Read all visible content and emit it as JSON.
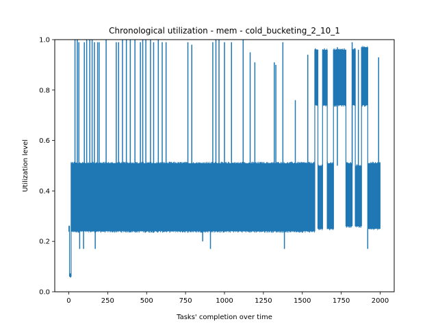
{
  "chart_data": {
    "type": "line",
    "title": "Chronological utilization - mem - cold_bucketing_2_10_1",
    "xlabel": "Tasks' completion over time",
    "ylabel": "Utilization level",
    "xlim": [
      -90,
      2090
    ],
    "ylim": [
      0.0,
      1.0
    ],
    "xticks": [
      0,
      250,
      500,
      750,
      1000,
      1250,
      1500,
      1750,
      2000
    ],
    "xtick_labels": [
      "0",
      "250",
      "500",
      "750",
      "1000",
      "1250",
      "1500",
      "1750",
      "2000"
    ],
    "yticks": [
      0.0,
      0.2,
      0.4,
      0.6,
      0.8,
      1.0
    ],
    "ytick_labels": [
      "0.0",
      "0.2",
      "0.4",
      "0.6",
      "0.8",
      "1.0"
    ],
    "grid": false,
    "series": [
      {
        "color": "#1f77b4",
        "x_start": 0,
        "x_end": 2000,
        "segments": [
          {
            "x": [
              0,
              5
            ],
            "low": 0.24,
            "high": 0.26
          },
          {
            "x": [
              5,
              15
            ],
            "low": 0.06,
            "high": 0.07
          },
          {
            "x": [
              15,
              1580
            ],
            "low": 0.24,
            "high": 0.51
          },
          {
            "x": [
              1580,
              1600
            ],
            "low": 0.74,
            "high": 0.96
          },
          {
            "x": [
              1600,
              1630
            ],
            "low": 0.25,
            "high": 0.5
          },
          {
            "x": [
              1630,
              1660
            ],
            "low": 0.74,
            "high": 0.96
          },
          {
            "x": [
              1660,
              1700
            ],
            "low": 0.25,
            "high": 0.51
          },
          {
            "x": [
              1700,
              1780
            ],
            "low": 0.74,
            "high": 0.96
          },
          {
            "x": [
              1780,
              1820
            ],
            "low": 0.26,
            "high": 0.51
          },
          {
            "x": [
              1820,
              1840
            ],
            "low": 0.74,
            "high": 0.96
          },
          {
            "x": [
              1840,
              1880
            ],
            "low": 0.26,
            "high": 0.5
          },
          {
            "x": [
              1880,
              1920
            ],
            "low": 0.74,
            "high": 0.97
          },
          {
            "x": [
              1920,
              2000
            ],
            "low": 0.25,
            "high": 0.51
          }
        ],
        "spikes": [
          {
            "x": 40,
            "y": 1.0
          },
          {
            "x": 55,
            "y": 1.0
          },
          {
            "x": 65,
            "y": 0.99
          },
          {
            "x": 100,
            "y": 0.99
          },
          {
            "x": 115,
            "y": 1.0
          },
          {
            "x": 135,
            "y": 1.0
          },
          {
            "x": 150,
            "y": 1.0
          },
          {
            "x": 165,
            "y": 0.99
          },
          {
            "x": 185,
            "y": 0.99
          },
          {
            "x": 195,
            "y": 0.99
          },
          {
            "x": 240,
            "y": 1.0
          },
          {
            "x": 305,
            "y": 0.99
          },
          {
            "x": 320,
            "y": 0.99
          },
          {
            "x": 345,
            "y": 1.0
          },
          {
            "x": 370,
            "y": 1.0
          },
          {
            "x": 395,
            "y": 1.0
          },
          {
            "x": 425,
            "y": 1.0
          },
          {
            "x": 460,
            "y": 0.99
          },
          {
            "x": 475,
            "y": 1.0
          },
          {
            "x": 495,
            "y": 1.0
          },
          {
            "x": 525,
            "y": 1.0
          },
          {
            "x": 545,
            "y": 0.99
          },
          {
            "x": 575,
            "y": 1.0
          },
          {
            "x": 600,
            "y": 0.99
          },
          {
            "x": 625,
            "y": 0.99
          },
          {
            "x": 765,
            "y": 0.99
          },
          {
            "x": 790,
            "y": 0.98
          },
          {
            "x": 925,
            "y": 0.99
          },
          {
            "x": 945,
            "y": 1.0
          },
          {
            "x": 965,
            "y": 1.0
          },
          {
            "x": 1000,
            "y": 0.99
          },
          {
            "x": 1045,
            "y": 0.99
          },
          {
            "x": 1120,
            "y": 1.0
          },
          {
            "x": 1165,
            "y": 0.95
          },
          {
            "x": 1195,
            "y": 0.91
          },
          {
            "x": 1320,
            "y": 0.91
          },
          {
            "x": 1330,
            "y": 0.9
          },
          {
            "x": 1375,
            "y": 0.99
          },
          {
            "x": 1455,
            "y": 0.76
          },
          {
            "x": 1535,
            "y": 0.94
          },
          {
            "x": 1725,
            "y": 0.97
          },
          {
            "x": 1820,
            "y": 0.99
          },
          {
            "x": 1860,
            "y": 0.96
          },
          {
            "x": 1990,
            "y": 0.93
          }
        ],
        "dips": [
          {
            "x": 70,
            "y": 0.17
          },
          {
            "x": 95,
            "y": 0.17
          },
          {
            "x": 170,
            "y": 0.17
          },
          {
            "x": 860,
            "y": 0.2
          },
          {
            "x": 910,
            "y": 0.17
          },
          {
            "x": 1385,
            "y": 0.17
          },
          {
            "x": 1920,
            "y": 0.17
          }
        ]
      }
    ]
  }
}
